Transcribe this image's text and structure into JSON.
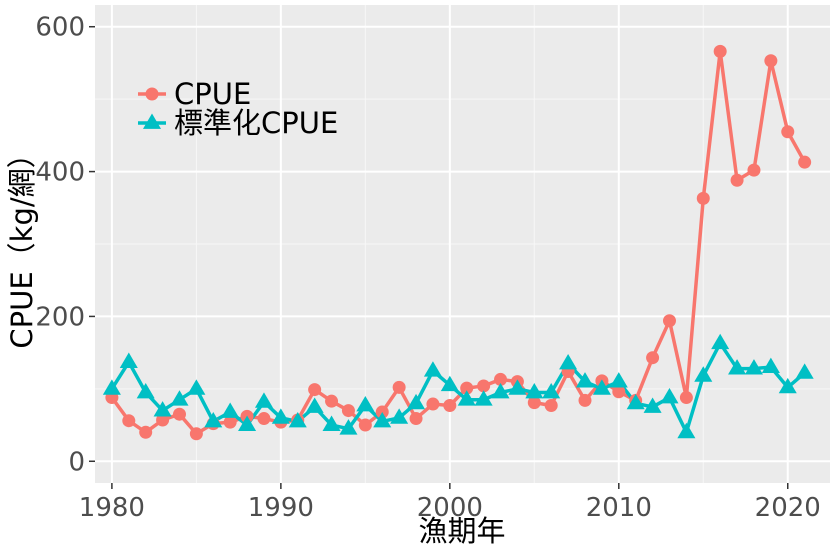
{
  "chart_data": {
    "type": "line",
    "xlabel": "漁期年",
    "ylabel": "CPUE（kg/網）",
    "xlim": [
      1979,
      2022.5
    ],
    "ylim": [
      -30,
      630
    ],
    "x_ticks": [
      1980,
      1990,
      2000,
      2010,
      2020
    ],
    "y_ticks": [
      0,
      200,
      400,
      600
    ],
    "grid": true,
    "legend_position": "top-left",
    "x": [
      1980,
      1981,
      1982,
      1983,
      1984,
      1985,
      1986,
      1987,
      1988,
      1989,
      1990,
      1991,
      1992,
      1993,
      1994,
      1995,
      1996,
      1997,
      1998,
      1999,
      2000,
      2001,
      2002,
      2003,
      2004,
      2005,
      2006,
      2007,
      2008,
      2009,
      2010,
      2011,
      2012,
      2013,
      2014,
      2015,
      2016,
      2017,
      2018,
      2019,
      2020,
      2021
    ],
    "series": [
      {
        "name": "CPUE",
        "color": "#F8766D",
        "marker": "circle",
        "values": [
          88,
          56,
          40,
          57,
          65,
          38,
          52,
          54,
          62,
          59,
          54,
          57,
          99,
          83,
          70,
          50,
          68,
          102,
          59,
          79,
          77,
          101,
          104,
          113,
          110,
          81,
          77,
          124,
          84,
          111,
          96,
          84,
          143,
          194,
          88,
          363,
          566,
          388,
          402,
          553,
          455,
          413
        ]
      },
      {
        "name": "標準化CPUE",
        "color": "#00BFC4",
        "marker": "triangle",
        "values": [
          100,
          137,
          95,
          70,
          85,
          100,
          55,
          68,
          50,
          82,
          60,
          55,
          75,
          50,
          45,
          77,
          55,
          60,
          80,
          125,
          105,
          85,
          85,
          95,
          100,
          95,
          95,
          135,
          110,
          100,
          110,
          80,
          75,
          88,
          40,
          118,
          163,
          128,
          128,
          130,
          102,
          122
        ]
      }
    ]
  }
}
